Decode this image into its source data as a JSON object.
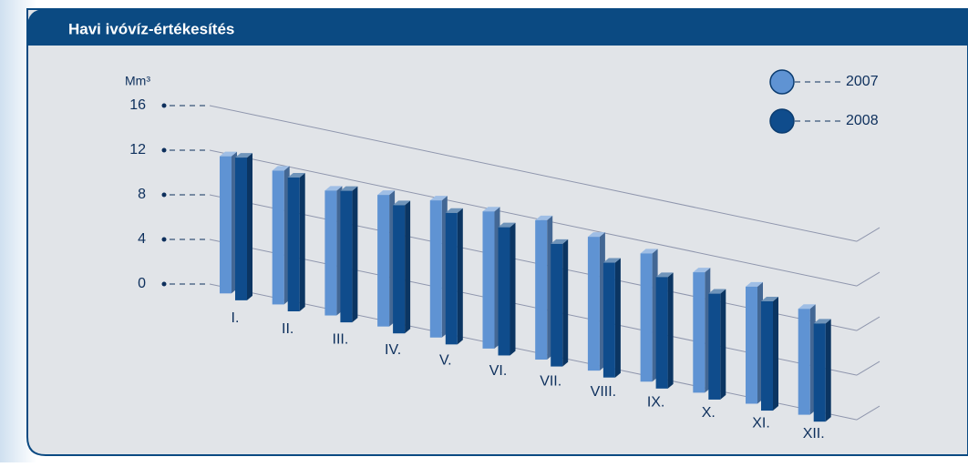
{
  "chart_data": {
    "type": "bar3d",
    "title": "Havi ivóvíz-értékesítés",
    "y_label": "Mm³",
    "categories": [
      "I.",
      "II.",
      "III.",
      "IV.",
      "V.",
      "VI.",
      "VII.",
      "VIII.",
      "IX.",
      "X.",
      "XI.",
      "XII."
    ],
    "series": [
      {
        "name": "2007",
        "color": "#5f93d3",
        "values": [
          12.3,
          12.0,
          11.2,
          11.8,
          12.3,
          12.3,
          12.5,
          12.0,
          11.5,
          10.8,
          10.5,
          9.5
        ]
      },
      {
        "name": "2008",
        "color": "#0f4c8c",
        "values": [
          12.8,
          12.0,
          11.8,
          11.5,
          11.8,
          11.5,
          11.0,
          10.3,
          10.0,
          9.5,
          9.8,
          8.8
        ]
      }
    ],
    "ylim": [
      0,
      16
    ],
    "yticks": [
      0,
      4,
      8,
      12,
      16
    ],
    "grid": true,
    "legend": "top-right"
  }
}
